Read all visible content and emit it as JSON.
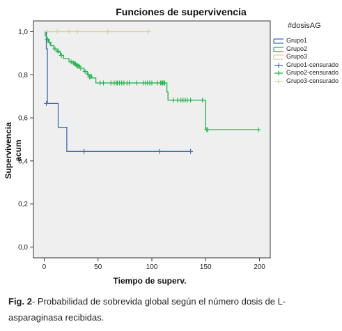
{
  "chart_data": {
    "type": "line",
    "subtype": "kaplan-meier step",
    "title": "Funciones de supervivencia",
    "xlabel": "Tiempo de superv.",
    "ylabel": "Supervivencia acum",
    "xlim": [
      -10,
      210
    ],
    "ylim": [
      -0.05,
      1.05
    ],
    "x_ticks": [
      0,
      50,
      100,
      150,
      200
    ],
    "y_ticks": [
      0.0,
      0.2,
      0.4,
      0.6,
      0.8,
      1.0
    ],
    "y_tick_labels": [
      "0,0",
      "0,2",
      "0,4",
      "0,6",
      "0,8",
      "1,0"
    ],
    "grid": false,
    "plot_background": "#efefef",
    "legend": {
      "title": "#dosisAG",
      "placement": "right",
      "entries": [
        "Grupo1",
        "Grupo2",
        "Grupo3",
        "Grupo1-censurado",
        "Grupo2-censurado",
        "Grupo3-censurado"
      ]
    },
    "series": [
      {
        "name": "Grupo1",
        "color": "#3f6bad",
        "steps": [
          [
            0,
            1.0
          ],
          [
            2,
            0.92
          ],
          [
            3,
            0.667
          ],
          [
            13,
            0.556
          ],
          [
            21,
            0.444
          ],
          [
            136,
            0.444
          ]
        ],
        "censored": [
          [
            2,
            0.667
          ],
          [
            37,
            0.444
          ],
          [
            107,
            0.444
          ],
          [
            136,
            0.444
          ]
        ]
      },
      {
        "name": "Grupo2",
        "color": "#1fb24a",
        "steps": [
          [
            0,
            1.0
          ],
          [
            1,
            0.98
          ],
          [
            2,
            0.965
          ],
          [
            4,
            0.95
          ],
          [
            6,
            0.935
          ],
          [
            9,
            0.92
          ],
          [
            12,
            0.905
          ],
          [
            15,
            0.89
          ],
          [
            18,
            0.875
          ],
          [
            23,
            0.86
          ],
          [
            28,
            0.845
          ],
          [
            33,
            0.83
          ],
          [
            37,
            0.815
          ],
          [
            40,
            0.8
          ],
          [
            44,
            0.785
          ],
          [
            48,
            0.762
          ],
          [
            113,
            0.762
          ],
          [
            114,
            0.72
          ],
          [
            115,
            0.682
          ],
          [
            149,
            0.682
          ],
          [
            150,
            0.545
          ],
          [
            199,
            0.545
          ]
        ],
        "censored": [
          [
            3,
            0.965
          ],
          [
            5,
            0.95
          ],
          [
            10,
            0.92
          ],
          [
            13,
            0.91
          ],
          [
            16,
            0.89
          ],
          [
            25,
            0.86
          ],
          [
            27,
            0.855
          ],
          [
            29,
            0.85
          ],
          [
            30,
            0.845
          ],
          [
            31,
            0.84
          ],
          [
            32,
            0.84
          ],
          [
            34,
            0.83
          ],
          [
            38,
            0.815
          ],
          [
            41,
            0.8
          ],
          [
            42,
            0.79
          ],
          [
            43,
            0.79
          ],
          [
            52,
            0.762
          ],
          [
            55,
            0.762
          ],
          [
            62,
            0.762
          ],
          [
            65,
            0.762
          ],
          [
            67,
            0.762
          ],
          [
            68,
            0.762
          ],
          [
            70,
            0.762
          ],
          [
            72,
            0.762
          ],
          [
            74,
            0.762
          ],
          [
            77,
            0.762
          ],
          [
            79,
            0.762
          ],
          [
            86,
            0.762
          ],
          [
            92,
            0.762
          ],
          [
            94,
            0.762
          ],
          [
            96,
            0.762
          ],
          [
            98,
            0.762
          ],
          [
            100,
            0.762
          ],
          [
            105,
            0.762
          ],
          [
            108,
            0.762
          ],
          [
            109,
            0.762
          ],
          [
            110,
            0.762
          ],
          [
            111,
            0.762
          ],
          [
            112,
            0.762
          ],
          [
            120,
            0.682
          ],
          [
            124,
            0.682
          ],
          [
            127,
            0.682
          ],
          [
            129,
            0.682
          ],
          [
            131,
            0.682
          ],
          [
            133,
            0.682
          ],
          [
            136,
            0.682
          ],
          [
            147,
            0.682
          ],
          [
            151,
            0.545
          ],
          [
            152,
            0.545
          ],
          [
            199,
            0.545
          ]
        ]
      },
      {
        "name": "Grupo3",
        "color": "#d5d0a0",
        "steps": [
          [
            0,
            1.0
          ],
          [
            97,
            1.0
          ]
        ],
        "censored": [
          [
            3,
            1.0
          ],
          [
            12,
            1.0
          ],
          [
            23,
            1.0
          ],
          [
            31,
            1.0
          ],
          [
            59,
            1.0
          ],
          [
            97,
            1.0
          ]
        ]
      }
    ]
  },
  "caption": {
    "label": "Fig. 2",
    "text": "- Probabilidad de sobrevida global según el número dosis de L-asparaginasa recibidas."
  }
}
